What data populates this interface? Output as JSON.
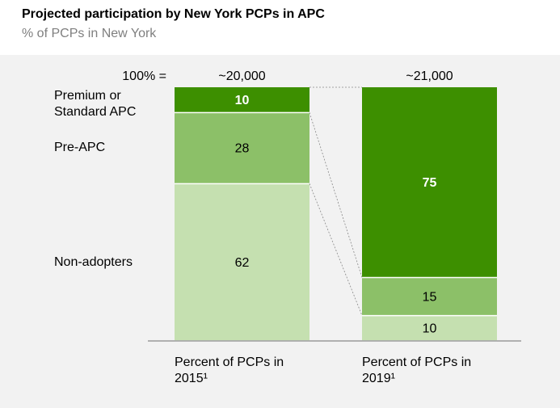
{
  "chart_data": {
    "type": "stacked_bar",
    "title": "Projected participation by New York PCPs in APC",
    "subtitle": "% of PCPs in New York",
    "total_label": "100% =",
    "totals": [
      "~20,000",
      "~21,000"
    ],
    "categories": [
      "Percent of PCPs in 2015¹",
      "Percent of PCPs in 2019¹"
    ],
    "series": [
      {
        "name": "Non-adopters",
        "color": "#c5e0b0",
        "label_color": "#000000",
        "values": [
          62,
          10
        ]
      },
      {
        "name": "Pre-APC",
        "color": "#8cc068",
        "label_color": "#000000",
        "values": [
          28,
          15
        ]
      },
      {
        "name": "Premium or Standard APC",
        "color": "#3d8f00",
        "label_color": "#ffffff",
        "values": [
          10,
          75
        ]
      }
    ],
    "ylim": [
      0,
      100
    ]
  }
}
